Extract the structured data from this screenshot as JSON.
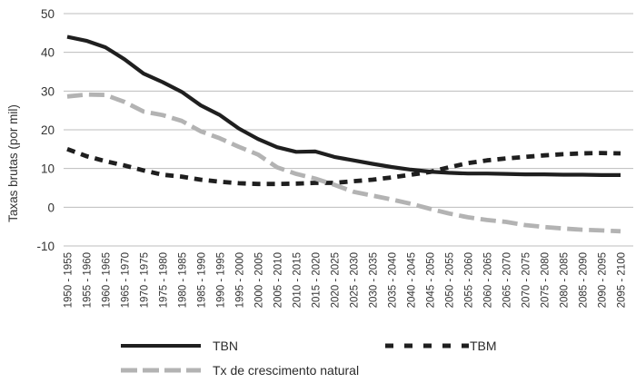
{
  "chart": {
    "y_axis_title": "Taxas brutas (por mil)",
    "legend": {
      "tbn_label": "TBN",
      "tbm_label": "TBM",
      "tx_label": "Tx de crescimento natural"
    },
    "colors": {
      "black_line": "#1f1f1f",
      "gray_line": "#b3b3b3",
      "gridline": "#bdbdbd",
      "text": "#333333",
      "background": "#ffffff"
    }
  },
  "chart_data": {
    "type": "line",
    "title": "",
    "xlabel": "",
    "ylabel": "Taxas brutas (por mil)",
    "ylim": [
      -10,
      50
    ],
    "y_ticks": [
      50,
      40,
      30,
      20,
      10,
      0,
      -10
    ],
    "grid": "horizontal",
    "legend_position": "bottom",
    "x_tick_rotation": 90,
    "categories": [
      "1950 - 1955",
      "1955 - 1960",
      "1960 - 1965",
      "1965 - 1970",
      "1970 - 1975",
      "1975 - 1980",
      "1980 - 1985",
      "1985 - 1990",
      "1990 - 1995",
      "1995 - 2000",
      "2000 - 2005",
      "2005 - 2010",
      "2010 - 2015",
      "2015 - 2020",
      "2020 - 2025",
      "2025 - 2030",
      "2030 - 2035",
      "2035 - 2040",
      "2040 - 2045",
      "2045 - 2050",
      "2050 - 2055",
      "2055 - 2060",
      "2060 - 2065",
      "2065 - 2070",
      "2070 - 2075",
      "2075 - 2080",
      "2080 - 2085",
      "2085 - 2090",
      "2090 - 2095",
      "2095 - 2100"
    ],
    "series": [
      {
        "name": "TBN",
        "style": "solid",
        "color": "#1f1f1f",
        "values": [
          44.0,
          43.0,
          41.3,
          38.2,
          34.5,
          32.3,
          29.8,
          26.3,
          23.8,
          20.3,
          17.6,
          15.5,
          14.3,
          14.4,
          13.0,
          12.1,
          11.2,
          10.4,
          9.7,
          9.2,
          8.9,
          8.7,
          8.7,
          8.6,
          8.5,
          8.5,
          8.4,
          8.4,
          8.3,
          8.3
        ]
      },
      {
        "name": "TBM",
        "style": "dashed",
        "color": "#1f1f1f",
        "values": [
          15.0,
          13.2,
          11.9,
          10.8,
          9.5,
          8.4,
          7.9,
          7.1,
          6.6,
          6.2,
          6.0,
          6.0,
          6.1,
          6.3,
          6.3,
          6.7,
          7.1,
          7.7,
          8.4,
          9.1,
          10.3,
          11.4,
          12.1,
          12.6,
          13.0,
          13.4,
          13.7,
          13.9,
          14.0,
          13.9
        ]
      },
      {
        "name": "Tx de crescimento natural",
        "style": "long-dash",
        "color": "#b3b3b3",
        "values": [
          28.6,
          29.1,
          29.0,
          27.2,
          24.7,
          23.8,
          22.3,
          19.6,
          17.8,
          15.6,
          13.6,
          10.3,
          8.6,
          7.4,
          5.8,
          4.0,
          3.0,
          2.0,
          0.9,
          -0.4,
          -1.6,
          -2.6,
          -3.3,
          -3.8,
          -4.6,
          -5.1,
          -5.5,
          -5.8,
          -6.0,
          -6.2
        ]
      }
    ]
  }
}
